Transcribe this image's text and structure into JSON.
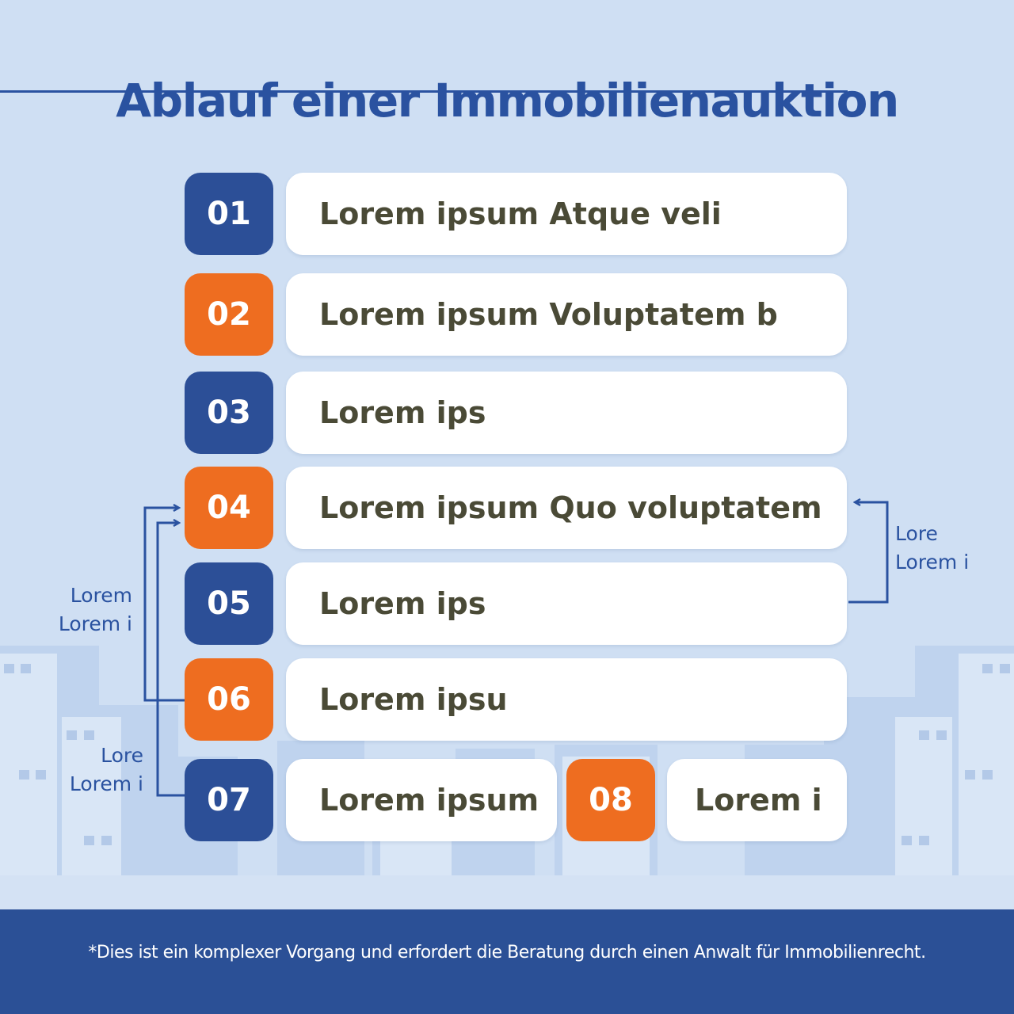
{
  "title": "Ablauf einer Immobilienauktion",
  "colors": {
    "blue": "#2c4f97",
    "orange": "#ee6d20",
    "text": "#4a4a36",
    "background": "#cfdff3"
  },
  "steps": [
    {
      "number": "01",
      "label": "Lorem ipsum Atque veli",
      "color": "blue"
    },
    {
      "number": "02",
      "label": "Lorem ipsum Voluptatem b",
      "color": "orange"
    },
    {
      "number": "03",
      "label": "Lorem ips",
      "color": "blue"
    },
    {
      "number": "04",
      "label": "Lorem ipsum Quo voluptatem",
      "color": "orange"
    },
    {
      "number": "05",
      "label": "Lorem ips",
      "color": "blue"
    },
    {
      "number": "06",
      "label": "Lorem ipsu",
      "color": "orange"
    },
    {
      "number": "07",
      "label": "Lorem ipsum",
      "color": "blue"
    },
    {
      "number": "08",
      "label": "Lorem i",
      "color": "orange"
    }
  ],
  "loops": {
    "left_upper": {
      "line1": "Lorem",
      "line2": "Lorem i"
    },
    "left_lower": {
      "line1": "Lore",
      "line2": "Lorem i"
    },
    "right": {
      "line1": "Lore",
      "line2": "Lorem i"
    }
  },
  "footer": "*Dies ist ein komplexer Vorgang und erfordert die Beratung durch einen Anwalt für Immobilienrecht."
}
